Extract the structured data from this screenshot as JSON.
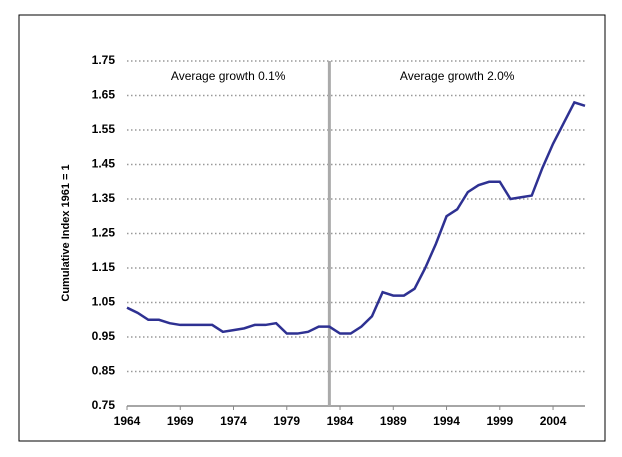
{
  "chart_data": {
    "type": "line",
    "y_label": "Cumulative Index 1961 = 1",
    "annotations": [
      "Average growth 0.1%",
      "Average growth 2.0%"
    ],
    "divider_x": 1983,
    "x": [
      1964,
      1965,
      1966,
      1967,
      1968,
      1969,
      1970,
      1971,
      1972,
      1973,
      1974,
      1975,
      1976,
      1977,
      1978,
      1979,
      1980,
      1981,
      1982,
      1983,
      1984,
      1985,
      1986,
      1987,
      1988,
      1989,
      1990,
      1991,
      1992,
      1993,
      1994,
      1995,
      1996,
      1997,
      1998,
      1999,
      2000,
      2001,
      2002,
      2003,
      2004,
      2005,
      2006,
      2007
    ],
    "series": [
      {
        "color": "#2e3192",
        "values": [
          1.035,
          1.02,
          1.0,
          1.0,
          0.99,
          0.985,
          0.985,
          0.985,
          0.985,
          0.965,
          0.97,
          0.975,
          0.985,
          0.985,
          0.99,
          0.96,
          0.96,
          0.965,
          0.98,
          0.98,
          0.96,
          0.96,
          0.98,
          1.01,
          1.08,
          1.07,
          1.07,
          1.09,
          1.15,
          1.22,
          1.3,
          1.32,
          1.37,
          1.39,
          1.4,
          1.4,
          1.35,
          1.355,
          1.36,
          1.44,
          1.51,
          1.57,
          1.63,
          1.62
        ]
      }
    ],
    "xlim": [
      1964,
      2007
    ],
    "xticks": [
      1964,
      1969,
      1974,
      1979,
      1984,
      1989,
      1994,
      1999,
      2004
    ],
    "ylim": [
      0.75,
      1.75
    ],
    "yticks": [
      0.75,
      0.85,
      0.95,
      1.05,
      1.15,
      1.25,
      1.35,
      1.45,
      1.55,
      1.65,
      1.75
    ],
    "grid": true
  }
}
